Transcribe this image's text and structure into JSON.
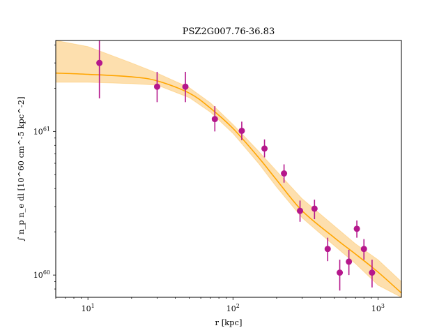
{
  "chart_data": {
    "type": "scatter",
    "title": "PSZ2G007.76-36.83",
    "xlabel": "r [kpc]",
    "ylabel": "∫ n_p n_e dl [10^60 cm^-5 kpc^-2]",
    "xscale": "log",
    "yscale": "log",
    "xlim": [
      6,
      1450
    ],
    "ylim": [
      7e+59,
      4.3e+61
    ],
    "x_ticks": [
      {
        "value": 10,
        "label": "10",
        "exp": "1"
      },
      {
        "value": 100,
        "label": "10",
        "exp": "2"
      },
      {
        "value": 1000,
        "label": "10",
        "exp": "3"
      }
    ],
    "y_ticks": [
      {
        "value": 1e+60,
        "label": "10",
        "exp": "60"
      },
      {
        "value": 1e+61,
        "label": "10",
        "exp": "61"
      }
    ],
    "colors": {
      "data": "#b5178c",
      "model_line": "#ffa500",
      "model_band": "#fdd9a0"
    },
    "series": [
      {
        "kind": "points",
        "points": [
          {
            "x": 12.0,
            "y": 3e+61,
            "ylo": 1.7e+61,
            "yhi": 4.3e+61
          },
          {
            "x": 30.0,
            "y": 2.05e+61,
            "ylo": 1.6e+61,
            "yhi": 2.6e+61
          },
          {
            "x": 47.0,
            "y": 2.05e+61,
            "ylo": 1.6e+61,
            "yhi": 2.6e+61
          },
          {
            "x": 75.0,
            "y": 1.22e+61,
            "ylo": 1e+61,
            "yhi": 1.5e+61
          },
          {
            "x": 115.0,
            "y": 1.01e+61,
            "ylo": 8.7e+60,
            "yhi": 1.17e+61
          },
          {
            "x": 165.0,
            "y": 7.6e+60,
            "ylo": 6.6e+60,
            "yhi": 8.8e+60
          },
          {
            "x": 225.0,
            "y": 5.1e+60,
            "ylo": 4.4e+60,
            "yhi": 5.9e+60
          },
          {
            "x": 290.0,
            "y": 2.8e+60,
            "ylo": 2.35e+60,
            "yhi": 3.3e+60
          },
          {
            "x": 365.0,
            "y": 2.9e+60,
            "ylo": 2.45e+60,
            "yhi": 3.35e+60
          },
          {
            "x": 450.0,
            "y": 1.52e+60,
            "ylo": 1.25e+60,
            "yhi": 1.82e+60
          },
          {
            "x": 545.0,
            "y": 1.04e+60,
            "ylo": 7.8e+59,
            "yhi": 1.28e+60
          },
          {
            "x": 630.0,
            "y": 1.24e+60,
            "ylo": 1e+60,
            "yhi": 1.5e+60
          },
          {
            "x": 715.0,
            "y": 2.1e+60,
            "ylo": 1.82e+60,
            "yhi": 2.4e+60
          },
          {
            "x": 800.0,
            "y": 1.52e+60,
            "ylo": 1.28e+60,
            "yhi": 1.78e+60
          },
          {
            "x": 910.0,
            "y": 1.04e+60,
            "ylo": 8.2e+59,
            "yhi": 1.28e+60
          }
        ]
      },
      {
        "kind": "model",
        "x": [
          6,
          10,
          20,
          30,
          50,
          70,
          100,
          150,
          200,
          300,
          500,
          700,
          1000,
          1450
        ],
        "y": [
          2.55e+61,
          2.5e+61,
          2.4e+61,
          2.25e+61,
          1.85e+61,
          1.45e+61,
          1.05e+61,
          6.6e+60,
          4.6e+60,
          2.8e+60,
          1.82e+60,
          1.4e+60,
          1.05e+60,
          7.5e+59
        ],
        "ylo": [
          2.2e+61,
          2.2e+61,
          2.15e+61,
          2.1e+61,
          1.72e+61,
          1.36e+61,
          9.7e+60,
          6e+60,
          4.1e+60,
          2.5e+60,
          1.6e+60,
          1.2e+60,
          8.5e+59,
          7e+59
        ],
        "yhi": [
          4.3e+61,
          3.9e+61,
          3e+61,
          2.55e+61,
          2.02e+61,
          1.58e+61,
          1.12e+61,
          7.3e+60,
          5.3e+60,
          3.4e+60,
          2.2e+60,
          1.65e+60,
          1.28e+60,
          9e+59
        ]
      }
    ]
  }
}
